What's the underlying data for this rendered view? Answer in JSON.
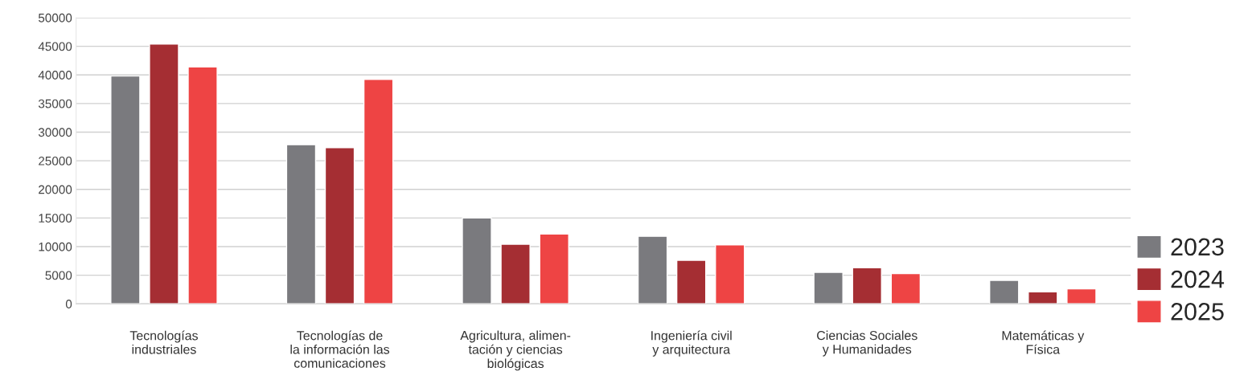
{
  "chart_data": {
    "type": "bar",
    "categories": [
      "Tecnologías\nindustriales",
      "Tecnologías de\nla información las\ncomunicaciones",
      "Agricultura, alimen-\ntación y ciencias\nbiológicas",
      "Ingeniería civil\ny arquitectura",
      "Ciencias Sociales\ny Humanidades",
      "Matemáticas y\nFísica"
    ],
    "series": [
      {
        "name": "2023",
        "color": "#7a7a7e",
        "values": [
          39800,
          27800,
          15000,
          11800,
          5500,
          4100
        ]
      },
      {
        "name": "2024",
        "color": "#a52e33",
        "values": [
          45400,
          27300,
          10400,
          7600,
          6300,
          2100
        ]
      },
      {
        "name": "2025",
        "color": "#ee4444",
        "values": [
          41400,
          39200,
          12200,
          10300,
          5300,
          2600
        ]
      }
    ],
    "ylim": [
      0,
      50000
    ],
    "yticks": [
      0,
      5000,
      10000,
      15000,
      20000,
      25000,
      30000,
      35000,
      40000,
      45000,
      50000
    ],
    "grid": "y",
    "legend": "right"
  }
}
